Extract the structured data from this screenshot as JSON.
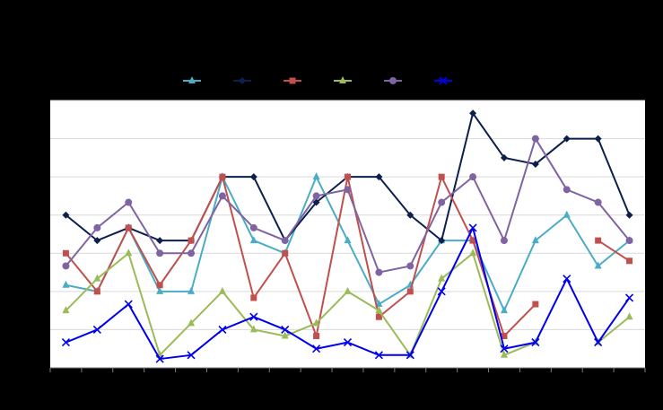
{
  "chart_data": {
    "type": "line",
    "title": "",
    "xlabel": "",
    "ylabel": "",
    "x": [
      1,
      2,
      3,
      4,
      5,
      6,
      7,
      8,
      9,
      10,
      11,
      12,
      13,
      14,
      15,
      16,
      17,
      18,
      19
    ],
    "ylim": [
      0,
      21
    ],
    "y_gridlines": [
      3,
      6,
      9,
      12,
      15,
      18,
      21
    ],
    "grid": true,
    "legend_position": "top-center",
    "series": [
      {
        "color": "#4bacc6",
        "marker": "triangle",
        "values": [
          6.5,
          6,
          11,
          6,
          6,
          15,
          10,
          9,
          15,
          10,
          5,
          6.5,
          10,
          10,
          4.5,
          10,
          12,
          8,
          10
        ]
      },
      {
        "color": "#0d1f4d",
        "marker": "diamond",
        "values": [
          12,
          10,
          11,
          10,
          10,
          15,
          15,
          10,
          13,
          15,
          15,
          12,
          10,
          20,
          16.5,
          16,
          18,
          18,
          12
        ]
      },
      {
        "color": "#c0504d",
        "marker": "square",
        "values": [
          9,
          6,
          11,
          6.5,
          10,
          15,
          5.5,
          9,
          2.5,
          15,
          4,
          6,
          15,
          10,
          2.5,
          5,
          null,
          10,
          8.4
        ]
      },
      {
        "color": "#9bbb59",
        "marker": "triangle",
        "values": [
          4.5,
          7,
          9,
          1,
          3.5,
          6,
          3,
          2.5,
          3.5,
          6,
          4.5,
          1,
          7,
          9,
          1,
          2,
          null,
          2,
          4
        ]
      },
      {
        "color": "#8064a2",
        "marker": "circle",
        "values": [
          8,
          11,
          13,
          9,
          9,
          13.5,
          11,
          10,
          13.5,
          14,
          7.5,
          8,
          13,
          15,
          10,
          18,
          14,
          13,
          10
        ]
      },
      {
        "color": "#0000ee",
        "marker": "x",
        "values": [
          2,
          3,
          5,
          0.7,
          1,
          3,
          4,
          3,
          1.5,
          2,
          1,
          1,
          6,
          11,
          1.5,
          2,
          7,
          2,
          5.5
        ]
      }
    ]
  }
}
